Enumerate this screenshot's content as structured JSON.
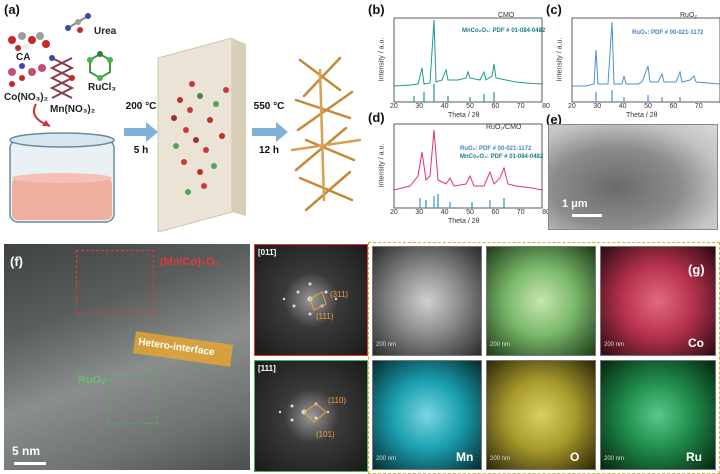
{
  "panel_labels": {
    "a": "(a)",
    "b": "(b)",
    "c": "(c)",
    "d": "(d)",
    "e": "(e)",
    "f": "(f)",
    "g": "(g)"
  },
  "reagents": {
    "ca": "CA",
    "urea": "Urea",
    "co": "Co(NO₃)₂",
    "mn": "Mn(NO₃)₂",
    "ru": "RuCl₃"
  },
  "steps": {
    "s1_temp": "200 °C",
    "s1_time": "5 h",
    "s2_temp": "550 °C",
    "s2_time": "12 h"
  },
  "plots": {
    "b": {
      "legend": "CMO",
      "pdf": "MnCo₂O₄: PDF # 01-084-0482",
      "ylabel": "Intensity / a.u.",
      "xlabel": "Theta / 2θ"
    },
    "c": {
      "legend": "RuO₂",
      "pdf": "RuO₂: PDF # 00-021-1172",
      "ylabel": "Intensity / a.u.",
      "xlabel": "Theta / 2θ"
    },
    "d": {
      "legend": "RuO₂/CMO",
      "pdf1": "RuO₂: PDF # 00-021-1172",
      "pdf2": "MnCo₂O₄: PDF # 01-084-0482",
      "ylabel": "Intensity / a.u.",
      "xlabel": "Theta / 2θ"
    },
    "ticks": [
      "20",
      "30",
      "40",
      "50",
      "60",
      "70",
      "80"
    ]
  },
  "sem": {
    "scale": "1 μm"
  },
  "hrtem": {
    "phase": "(Mn/Co)₃O₄",
    "interface": "Hetero-interface",
    "ruo2": "RuO₂",
    "scale": "5 nm"
  },
  "fft": {
    "top_zone": "[011̄]",
    "top_p1": "(311)",
    "top_p2": "(111)",
    "bot_zone": "[111]",
    "bot_p1": "(110)",
    "bot_p2": "(101)"
  },
  "maps": {
    "scale": "200 nm",
    "co": "Co",
    "mn": "Mn",
    "o": "O",
    "ru": "Ru"
  },
  "colors": {
    "cmo": "#1f9a8f",
    "ruo2": "#4a8fd6",
    "hetero": "#e0307a",
    "stick_a": "#1f9a8f",
    "stick_b": "#4a8fd6",
    "co_map": "#b8324e",
    "mn_map": "#1aa0b0",
    "o_map": "#a89a2c",
    "ru_map": "#1f8a4a",
    "merge_map": "#8fc47a"
  }
}
